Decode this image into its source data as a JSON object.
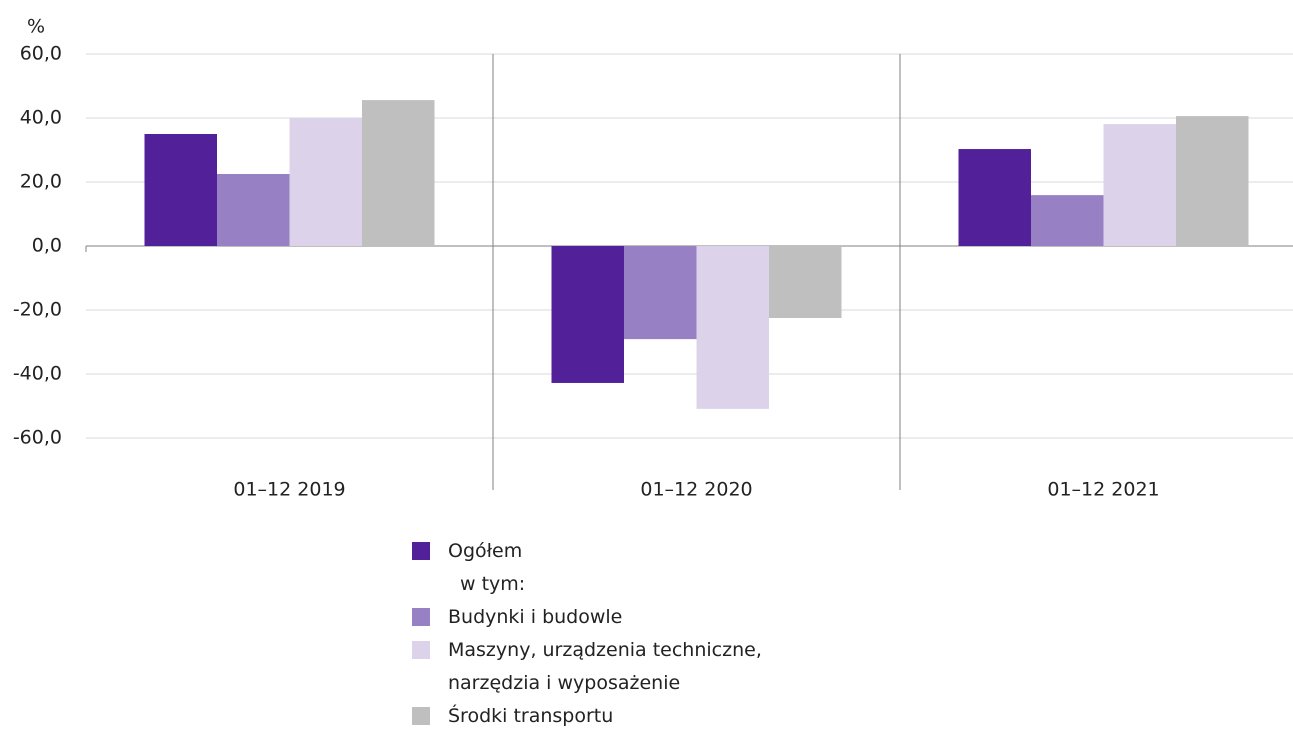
{
  "chart_data": {
    "type": "bar",
    "y_label": "%",
    "categories": [
      "01–12 2019",
      "01–12 2020",
      "01–12 2021"
    ],
    "series": [
      {
        "name": "Ogółem",
        "color": "#52219a",
        "values": [
          35.0,
          -42.8,
          30.3
        ]
      },
      {
        "name": "Budynki i budowle",
        "color": "#9880c4",
        "values": [
          22.5,
          -29.1,
          15.9
        ]
      },
      {
        "name": "Maszyny, urządzenia techniczne,\nnarzędzia i wyposażenie",
        "color": "#dcd3ea",
        "values": [
          40.0,
          -50.9,
          38.1
        ]
      },
      {
        "name": "Środki transportu",
        "color": "#bfbfbf",
        "values": [
          45.6,
          -22.5,
          40.6
        ]
      }
    ],
    "legend_note": "w tym:",
    "ylim": [
      -60,
      60
    ],
    "yticks": [
      {
        "value": 60,
        "label": "60,0"
      },
      {
        "value": 40,
        "label": "40,0"
      },
      {
        "value": 20,
        "label": "20,0"
      },
      {
        "value": 0,
        "label": "0,0"
      },
      {
        "value": -20,
        "label": "-20,0"
      },
      {
        "value": -40,
        "label": "-40,0"
      },
      {
        "value": -60,
        "label": "-60,0"
      }
    ],
    "grid": true
  }
}
